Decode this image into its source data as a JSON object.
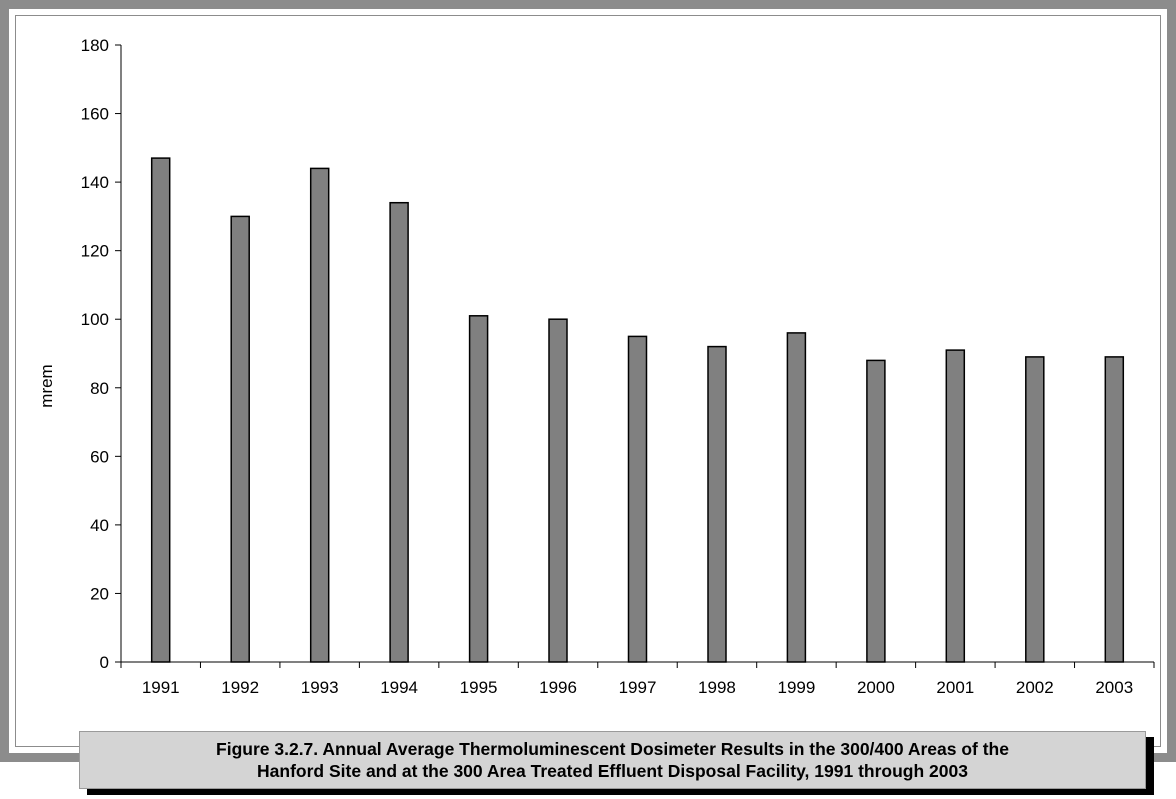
{
  "caption": {
    "text": "Figure 3.2.7.  Annual Average Thermoluminescent Dosimeter Results in the 300/400 Areas of the\nHanford Site and at the 300 Area Treated Effluent Disposal Facility, 1991 through 2003"
  },
  "chart_data": {
    "type": "bar",
    "title": "",
    "xlabel": "",
    "ylabel": "mrem",
    "categories": [
      "1991",
      "1992",
      "1993",
      "1994",
      "1995",
      "1996",
      "1997",
      "1998",
      "1999",
      "2000",
      "2001",
      "2002",
      "2003"
    ],
    "values": [
      147,
      130,
      144,
      134,
      101,
      100,
      95,
      92,
      96,
      88,
      91,
      89,
      89
    ],
    "ylim": [
      0,
      180
    ],
    "yticks": [
      0,
      20,
      40,
      60,
      80,
      100,
      120,
      140,
      160,
      180
    ],
    "grid": false,
    "legend": "none",
    "bar_color": "#808080"
  }
}
